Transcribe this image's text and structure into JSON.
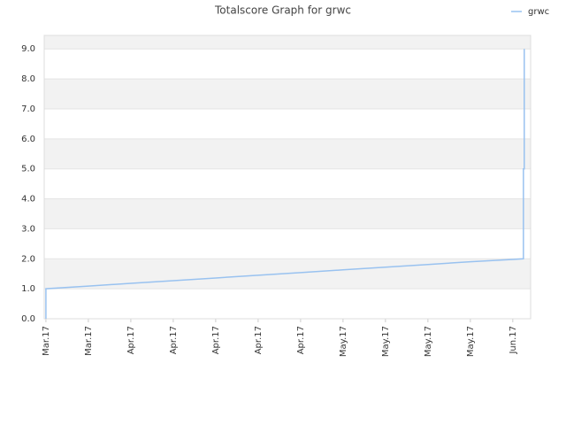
{
  "chart_data": {
    "type": "line",
    "title": "Totalscore Graph for grwc",
    "x": [
      0,
      0,
      1,
      2,
      3,
      4,
      5,
      6,
      7,
      8,
      9,
      10,
      11,
      11.25,
      11.25,
      11.27,
      11.27
    ],
    "series": [
      {
        "name": "grwc",
        "color": "#99c2f0",
        "values": [
          0,
          1,
          1.09,
          1.18,
          1.27,
          1.36,
          1.45,
          1.54,
          1.63,
          1.72,
          1.81,
          1.9,
          1.98,
          2,
          5,
          5,
          9
        ]
      }
    ],
    "xlim": [
      -0.04,
      11.42
    ],
    "xticks": [
      {
        "value": 0,
        "label": "Mar.17"
      },
      {
        "value": 1,
        "label": "Mar.17"
      },
      {
        "value": 2,
        "label": "Apr.17"
      },
      {
        "value": 3,
        "label": "Apr.17"
      },
      {
        "value": 4,
        "label": "Apr.17"
      },
      {
        "value": 5,
        "label": "Apr.17"
      },
      {
        "value": 6,
        "label": "Apr.17"
      },
      {
        "value": 7,
        "label": "May.17"
      },
      {
        "value": 8,
        "label": "May.17"
      },
      {
        "value": 9,
        "label": "May.17"
      },
      {
        "value": 10,
        "label": "May.17"
      },
      {
        "value": 11,
        "label": "Jun.17"
      }
    ],
    "ylim": [
      0,
      9.45
    ],
    "yticks": [
      {
        "value": 0,
        "label": "0.0"
      },
      {
        "value": 1,
        "label": "1.0"
      },
      {
        "value": 2,
        "label": "2.0"
      },
      {
        "value": 3,
        "label": "3.0"
      },
      {
        "value": 4,
        "label": "4.0"
      },
      {
        "value": 5,
        "label": "5.0"
      },
      {
        "value": 6,
        "label": "6.0"
      },
      {
        "value": 7,
        "label": "7.0"
      },
      {
        "value": 8,
        "label": "8.0"
      },
      {
        "value": 9,
        "label": "9.0"
      }
    ],
    "grid": true,
    "legend": "top-right"
  }
}
